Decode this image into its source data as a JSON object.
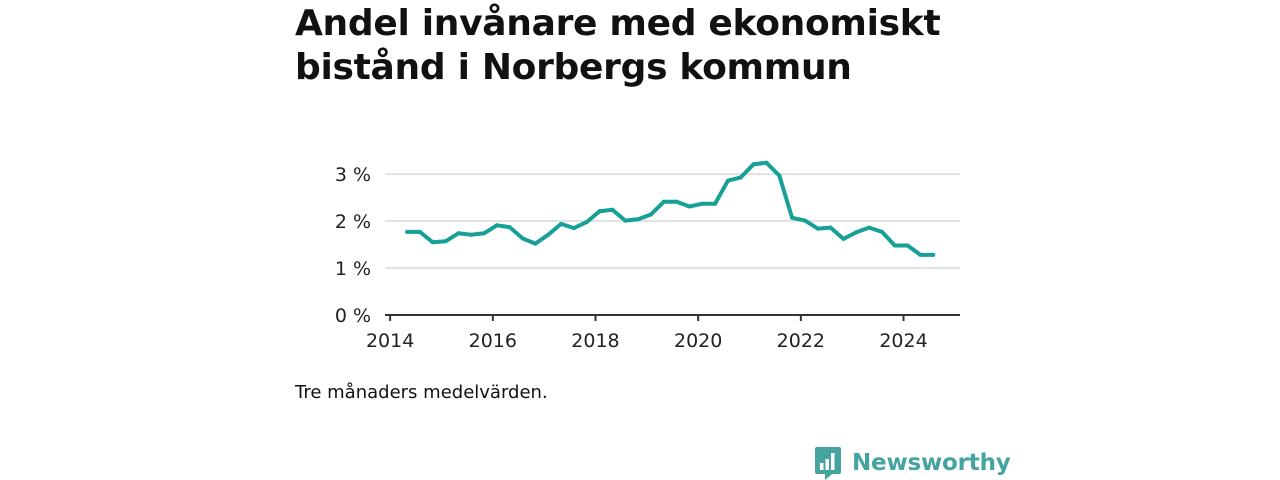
{
  "title": "Andel invånare med ekonomiskt bistånd i Norbergs kommun",
  "note": "Tre månaders medelvärden.",
  "brand": {
    "name": "Newsworthy",
    "icon": "newsworthy-logo-icon"
  },
  "colors": {
    "line": "#17a096",
    "brand": "#45a3a0",
    "grid": "#d9d9d9",
    "axis": "#333333"
  },
  "chart_data": {
    "type": "line",
    "title": "Andel invånare med ekonomiskt bistånd i Norbergs kommun",
    "xlabel": "",
    "ylabel": "",
    "xlim": [
      2013.9,
      2025.1
    ],
    "ylim": [
      0,
      3.3
    ],
    "grid": true,
    "x_ticks": [
      2014,
      2016,
      2018,
      2020,
      2022,
      2024
    ],
    "x_tick_labels": [
      "2014",
      "2016",
      "2018",
      "2020",
      "2022",
      "2024"
    ],
    "y_ticks": [
      0,
      1,
      2,
      3
    ],
    "y_tick_labels": [
      "0 %",
      "1 %",
      "2 %",
      "3 %"
    ],
    "series": [
      {
        "x": [
          2014.33,
          2014.58,
          2014.83,
          2015.08,
          2015.33,
          2015.58,
          2015.83,
          2016.08,
          2016.33,
          2016.58,
          2016.83,
          2017.08,
          2017.33,
          2017.58,
          2017.83,
          2018.08,
          2018.33,
          2018.58,
          2018.83,
          2019.08,
          2019.33,
          2019.58,
          2019.83,
          2020.08,
          2020.33,
          2020.58,
          2020.83,
          2021.08,
          2021.33,
          2021.58,
          2021.83,
          2022.08,
          2022.33,
          2022.58,
          2022.83,
          2023.08,
          2023.33,
          2023.58,
          2023.83,
          2024.08,
          2024.33,
          2024.58
        ],
        "values": [
          1.77,
          1.77,
          1.55,
          1.57,
          1.74,
          1.71,
          1.74,
          1.91,
          1.87,
          1.63,
          1.52,
          1.71,
          1.94,
          1.85,
          1.98,
          2.21,
          2.24,
          2.01,
          2.04,
          2.14,
          2.41,
          2.41,
          2.31,
          2.37,
          2.37,
          2.86,
          2.93,
          3.21,
          3.24,
          2.97,
          2.07,
          2.01,
          1.84,
          1.86,
          1.62,
          1.76,
          1.86,
          1.77,
          1.48,
          1.48,
          1.28,
          1.28
        ]
      }
    ]
  }
}
